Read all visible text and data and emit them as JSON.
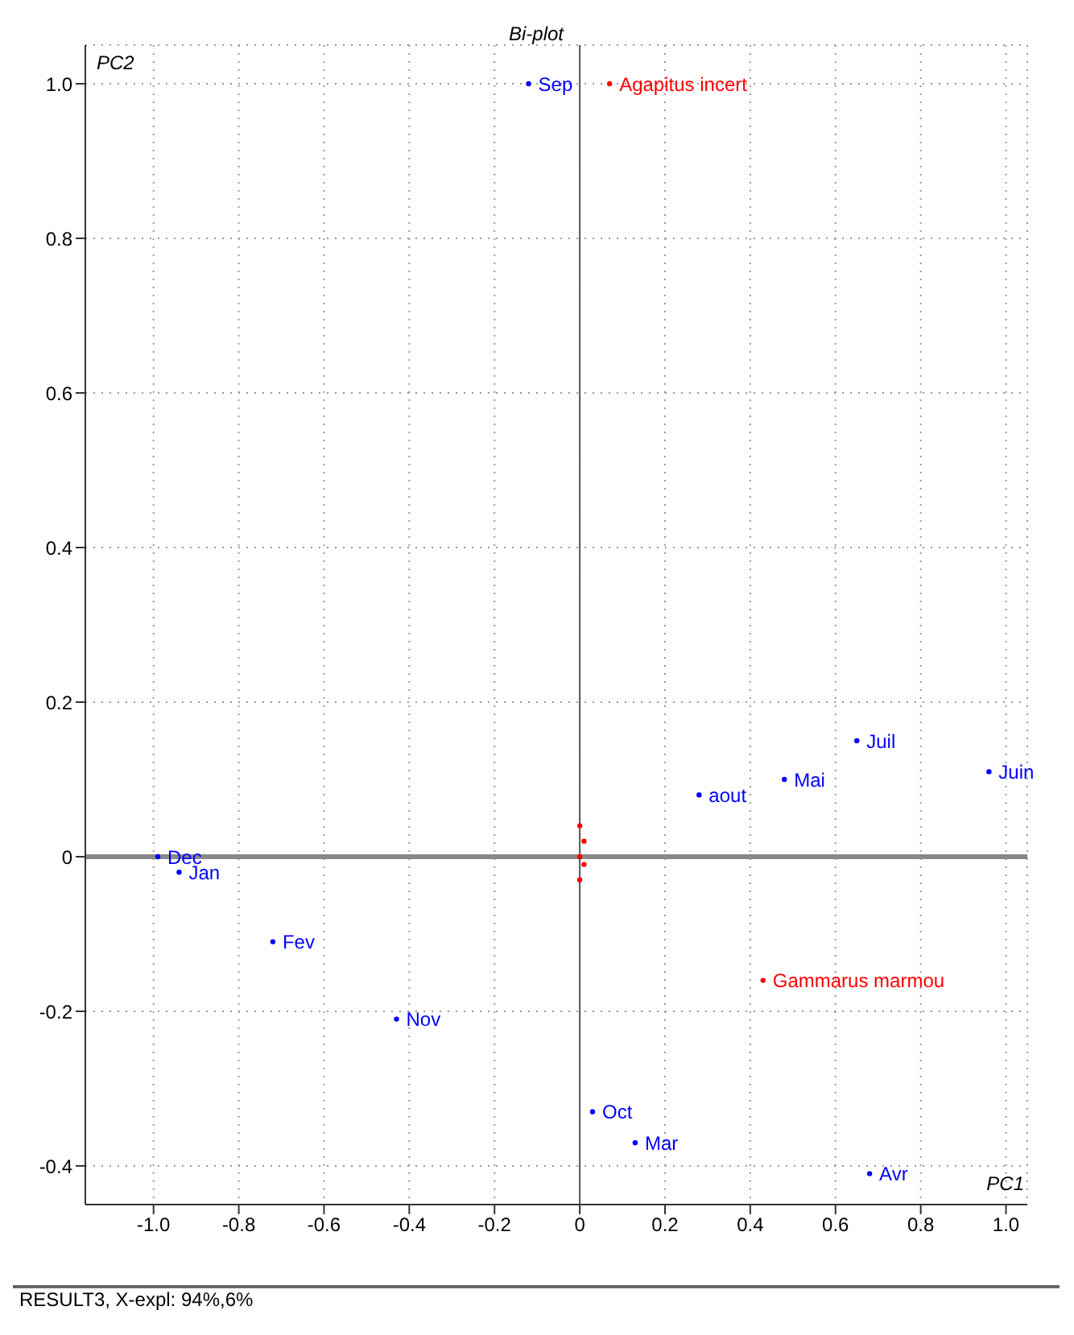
{
  "chart_data": {
    "type": "scatter",
    "title": "Bi-plot",
    "xlabel": "PC1",
    "ylabel": "PC2",
    "series": [
      {
        "color": "#0000ff",
        "x": [
          -0.12,
          -0.99,
          -0.94,
          -0.72,
          -0.43,
          0.03,
          0.13,
          0.68,
          0.28,
          0.48,
          0.65,
          0.96
        ],
        "values": [
          1.0,
          0.0,
          -0.02,
          -0.11,
          -0.21,
          -0.33,
          -0.37,
          -0.41,
          0.08,
          0.1,
          0.15,
          0.11
        ]
      },
      {
        "color": "#ff0000",
        "x": [
          0.07,
          0.43,
          0.0,
          0.01,
          0.0,
          0.01,
          0.0
        ],
        "values": [
          1.0,
          -0.16,
          0.04,
          0.02,
          0.0,
          -0.01,
          -0.03
        ]
      }
    ],
    "annotations": [
      {
        "text": "Sep",
        "x": -0.12,
        "y": 1.0
      },
      {
        "text": "Dec",
        "x": -0.99,
        "y": 0.0
      },
      {
        "text": "Jan",
        "x": -0.94,
        "y": -0.02
      },
      {
        "text": "Fev",
        "x": -0.72,
        "y": -0.11
      },
      {
        "text": "Nov",
        "x": -0.43,
        "y": -0.21
      },
      {
        "text": "Oct",
        "x": 0.03,
        "y": -0.33
      },
      {
        "text": "Mar",
        "x": 0.13,
        "y": -0.37
      },
      {
        "text": "Avr",
        "x": 0.68,
        "y": -0.41
      },
      {
        "text": "aout",
        "x": 0.28,
        "y": 0.08
      },
      {
        "text": "Mai",
        "x": 0.48,
        "y": 0.1
      },
      {
        "text": "Juil",
        "x": 0.65,
        "y": 0.15
      },
      {
        "text": "Juin",
        "x": 0.96,
        "y": 0.11
      },
      {
        "text": "Agapitus incert",
        "x": 0.07,
        "y": 1.0
      },
      {
        "text": "Gammarus marmou",
        "x": 0.43,
        "y": -0.16
      },
      "RESULT3, X-expl: 94%,6%"
    ],
    "xlim": [
      -1.16,
      1.05
    ],
    "xticks": [
      {
        "value": -1,
        "label": "-1.0"
      },
      -0.8,
      -0.6,
      -0.4,
      -0.2,
      0,
      0.2,
      0.4,
      0.6,
      0.8,
      {
        "value": 1,
        "label": "1.0"
      }
    ],
    "ylim": [
      -0.45,
      1.05
    ],
    "yticks": [
      -0.4,
      -0.2,
      0,
      0.2,
      0.4,
      0.6,
      0.8,
      {
        "value": 1,
        "label": "1.0"
      }
    ],
    "ref_lines": [
      {
        "axis": "x",
        "value": 0,
        "color": "#555555"
      },
      {
        "axis": "y",
        "value": 0,
        "color": "#888888"
      }
    ],
    "grid": true,
    "legend": false,
    "marker": "circle"
  }
}
